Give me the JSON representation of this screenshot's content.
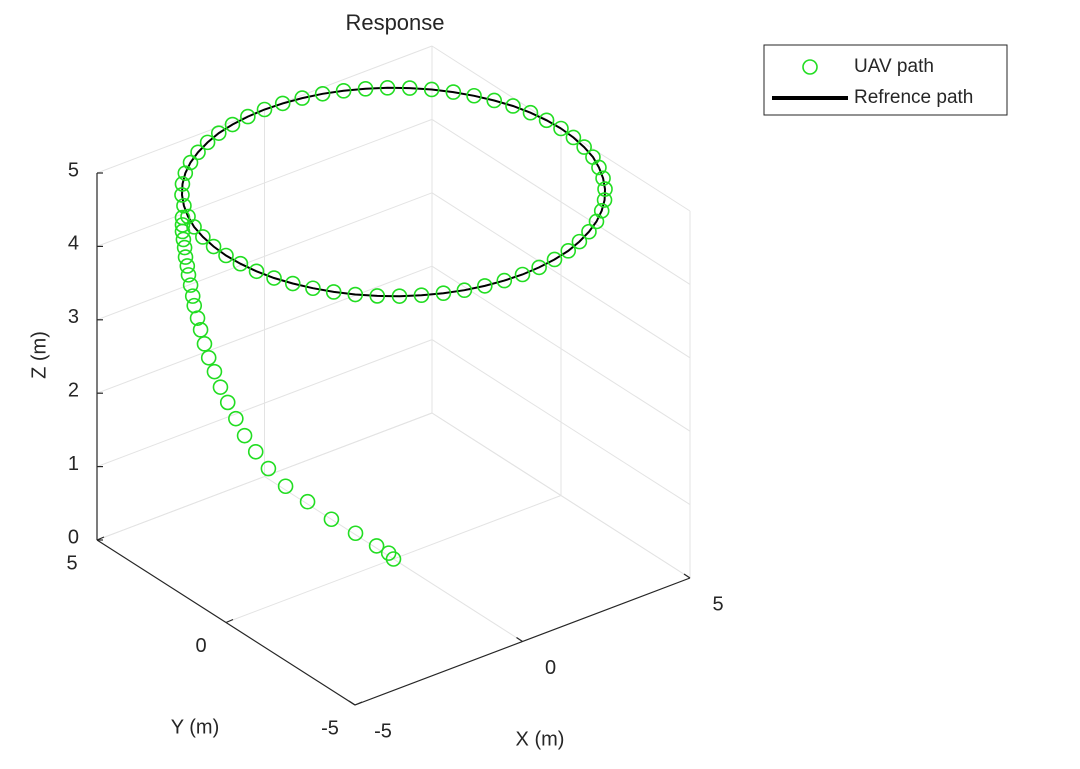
{
  "chart_data": {
    "type": "line3d",
    "title": "Response",
    "xlabel": "X (m)",
    "ylabel": "Y (m)",
    "zlabel": "Z (m)",
    "xlim": [
      -5,
      5
    ],
    "ylim": [
      -5,
      5
    ],
    "zlim": [
      0,
      5
    ],
    "xticks": [
      -5,
      0,
      5
    ],
    "yticks": [
      -5,
      0,
      5
    ],
    "zticks": [
      0,
      1,
      2,
      3,
      4,
      5
    ],
    "grid": true,
    "legend": "northeastoutside",
    "series": [
      {
        "name": "UAV path",
        "color": "#22dd22",
        "marker": "o",
        "x": [
          0,
          -0.09,
          -0.32,
          -0.71,
          -1.16,
          -1.61,
          -2.02,
          -2.34,
          -2.58,
          -2.79,
          -2.95,
          -3.1,
          -3.24,
          -3.35,
          -3.46,
          -3.54,
          -3.61,
          -3.67,
          -3.73,
          -3.76,
          -3.8,
          -3.84,
          -3.86,
          -3.89,
          -3.91,
          -3.93,
          -3.95,
          -3.95,
          -3.95,
          -4.05,
          -4.33,
          -4.57,
          -4.76,
          -4.89,
          -4.97,
          -5,
          -4.97,
          -4.89,
          -4.76,
          -4.57,
          -4.33,
          -4.05,
          -3.72,
          -3.35,
          -2.94,
          -2.5,
          -2.03,
          -1.55,
          -1.04,
          -0.52,
          0,
          0.52,
          1.04,
          1.55,
          2.03,
          2.5,
          2.94,
          3.35,
          3.72,
          4.05,
          4.33,
          4.57,
          4.76,
          4.89,
          4.97,
          5,
          4.97,
          4.89,
          4.76,
          4.57,
          4.33,
          4.05,
          3.72,
          3.35,
          2.94,
          2.5,
          2.03,
          1.55,
          1.04,
          0.52,
          0,
          -0.52,
          -1.04,
          -1.55,
          -2.03,
          -2.5,
          -2.94,
          -3.35,
          -3.72
        ],
        "y": [
          0,
          0.07,
          0.24,
          0.55,
          0.9,
          1.24,
          1.56,
          1.81,
          1.99,
          2.15,
          2.28,
          2.4,
          2.5,
          2.59,
          2.67,
          2.73,
          2.79,
          2.83,
          2.88,
          2.9,
          2.93,
          2.96,
          2.98,
          3.01,
          3.02,
          3.04,
          3.05,
          3.05,
          3.05,
          2.94,
          2.5,
          2.03,
          1.55,
          1.04,
          0.52,
          0,
          -0.52,
          -1.04,
          -1.55,
          -2.03,
          -2.5,
          -2.94,
          -3.35,
          -3.72,
          -4.05,
          -4.33,
          -4.57,
          -4.76,
          -4.89,
          -4.97,
          -5,
          -4.97,
          -4.89,
          -4.76,
          -4.57,
          -4.33,
          -4.05,
          -3.72,
          -3.35,
          -2.94,
          -2.5,
          -2.03,
          -1.55,
          -1.04,
          -0.52,
          0,
          0.52,
          1.04,
          1.55,
          2.03,
          2.5,
          2.94,
          3.35,
          3.72,
          4.05,
          4.33,
          4.57,
          4.76,
          4.89,
          4.97,
          5,
          4.97,
          4.89,
          4.76,
          4.57,
          4.33,
          4.05,
          3.72,
          3.35
        ],
        "z": [
          0,
          0.08,
          0.18,
          0.35,
          0.54,
          0.78,
          0.99,
          1.23,
          1.46,
          1.68,
          1.91,
          2.13,
          2.34,
          2.55,
          2.74,
          2.93,
          3.12,
          3.28,
          3.45,
          3.58,
          3.73,
          3.87,
          3.99,
          4.11,
          4.24,
          4.35,
          4.46,
          4.55,
          4.65,
          5,
          5,
          5,
          5,
          5,
          5,
          5,
          5,
          5,
          5,
          5,
          5,
          5,
          5,
          5,
          5,
          5,
          5,
          5,
          5,
          5,
          5,
          5,
          5,
          5,
          5,
          5,
          5,
          5,
          5,
          5,
          5,
          5,
          5,
          5,
          5,
          5,
          5,
          5,
          5,
          5,
          5,
          5,
          5,
          5,
          5,
          5,
          5,
          5,
          5,
          5,
          5,
          5,
          5,
          5,
          5,
          5,
          5,
          5,
          5
        ]
      },
      {
        "name": "Refrence path",
        "color": "#000000",
        "linestyle": "-",
        "x": [
          5,
          4.97,
          4.89,
          4.76,
          4.57,
          4.33,
          4.05,
          3.72,
          3.35,
          2.94,
          2.5,
          2.03,
          1.55,
          1.04,
          0.52,
          0,
          -0.52,
          -1.04,
          -1.55,
          -2.03,
          -2.5,
          -2.94,
          -3.35,
          -3.72,
          -4.05,
          -4.33,
          -4.57,
          -4.76,
          -4.89,
          -4.97,
          -5,
          -4.97,
          -4.89,
          -4.76,
          -4.57,
          -4.33,
          -4.05,
          -3.72,
          -3.35,
          -2.94,
          -2.5,
          -2.03,
          -1.55,
          -1.04,
          -0.52,
          0,
          0.52,
          1.04,
          1.55,
          2.03,
          2.5,
          2.94,
          3.35,
          3.72,
          4.05,
          4.33,
          4.57,
          4.76,
          4.89,
          4.97,
          5
        ],
        "y": [
          0,
          0.52,
          1.04,
          1.55,
          2.03,
          2.5,
          2.94,
          3.35,
          3.72,
          4.05,
          4.33,
          4.57,
          4.76,
          4.89,
          4.97,
          5,
          4.97,
          4.89,
          4.76,
          4.57,
          4.33,
          4.05,
          3.72,
          3.35,
          2.94,
          2.5,
          2.03,
          1.55,
          1.04,
          0.52,
          0,
          -0.52,
          -1.04,
          -1.55,
          -2.03,
          -2.5,
          -2.94,
          -3.35,
          -3.72,
          -4.05,
          -4.33,
          -4.57,
          -4.76,
          -4.89,
          -4.97,
          -5,
          -4.97,
          -4.89,
          -4.76,
          -4.57,
          -4.33,
          -4.05,
          -3.72,
          -3.35,
          -2.94,
          -2.5,
          -2.03,
          -1.55,
          -1.04,
          -0.52,
          0
        ],
        "z": [
          5,
          5,
          5,
          5,
          5,
          5,
          5,
          5,
          5,
          5,
          5,
          5,
          5,
          5,
          5,
          5,
          5,
          5,
          5,
          5,
          5,
          5,
          5,
          5,
          5,
          5,
          5,
          5,
          5,
          5,
          5,
          5,
          5,
          5,
          5,
          5,
          5,
          5,
          5,
          5,
          5,
          5,
          5,
          5,
          5,
          5,
          5,
          5,
          5,
          5,
          5,
          5,
          5,
          5,
          5,
          5,
          5,
          5,
          5,
          5,
          5
        ]
      }
    ]
  }
}
